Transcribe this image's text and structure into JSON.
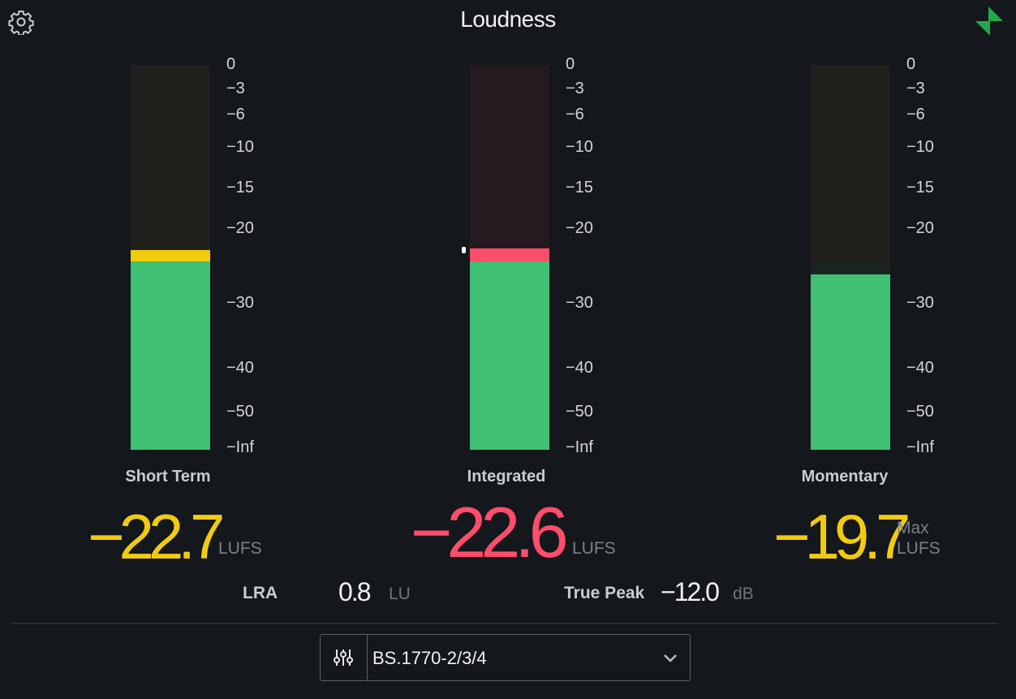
{
  "app": {
    "title": "Loudness"
  },
  "scale_ticks": [
    "0",
    "−3",
    "−6",
    "−10",
    "−15",
    "−20",
    "−30",
    "−40",
    "−50",
    "−Inf"
  ],
  "meters": {
    "short_term": {
      "label": "Short Term",
      "value": "−22.7",
      "unit": "LUFS",
      "fill_level": 0.49,
      "color": "#f2cc0c"
    },
    "integrated": {
      "label": "Integrated",
      "value": "−22.6",
      "unit": "LUFS",
      "fill_level": 0.49,
      "color": "#ff4d6a"
    },
    "momentary": {
      "label": "Momentary",
      "value": "−19.7",
      "unit_line1": "Max",
      "unit_line2": "LUFS",
      "fill_level": 0.455,
      "color": "#f2cc0c"
    }
  },
  "stats": {
    "lra": {
      "label": "LRA",
      "value": "0.8",
      "unit": "LU"
    },
    "true_peak": {
      "label": "True Peak",
      "value": "−12.0",
      "unit": "dB"
    }
  },
  "preset": {
    "value": "BS.1770-2/3/4"
  },
  "colors": {
    "green": "#40c072",
    "yellow": "#f2cc0c",
    "red": "#ff4d6a",
    "background": "#14171c"
  },
  "icons": {
    "settings": "gear-icon",
    "logo": "logo-icon",
    "preset": "sliders-icon",
    "dropdown": "chevron-down-icon"
  }
}
